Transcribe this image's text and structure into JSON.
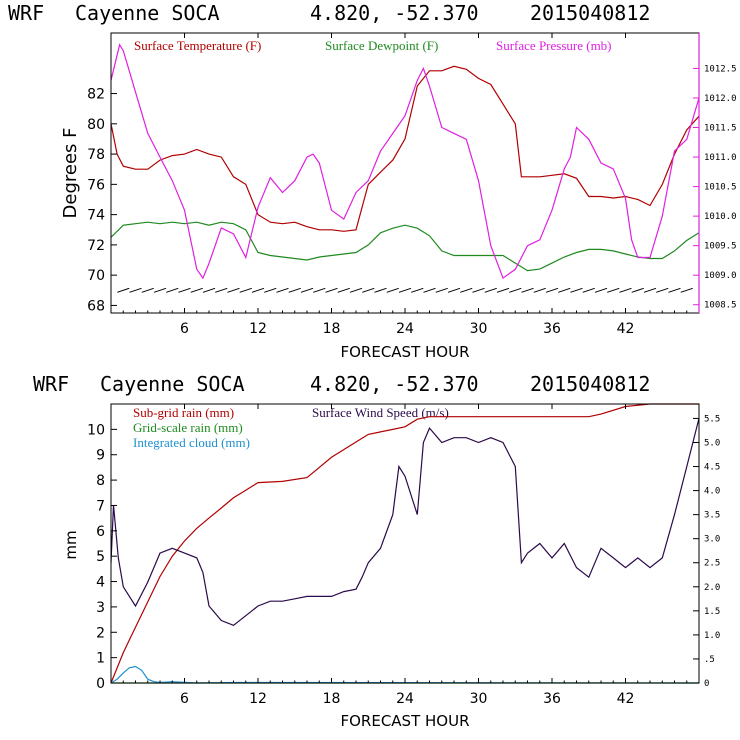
{
  "chart_data": [
    {
      "type": "line",
      "header": {
        "model": "WRF",
        "station": "Cayenne SOCA",
        "coords": "4.820, -52.370",
        "init": "2015040812"
      },
      "legend": [
        {
          "label": "Surface Temperature (F)",
          "color": "#b00000"
        },
        {
          "label": "Surface Dewpoint (F)",
          "color": "#1f8a1f"
        },
        {
          "label": "Surface Pressure (mb)",
          "color": "#e020e0"
        }
      ],
      "xlabel": "FORECAST HOUR",
      "ylabel": "Degrees F",
      "xlim": [
        0,
        48
      ],
      "ylim": [
        67.5,
        86
      ],
      "y2lim": [
        1008.36,
        1013.1
      ],
      "xticks": [
        "6",
        "12",
        "18",
        "24",
        "30",
        "36",
        "42"
      ],
      "yticks": [
        "68",
        "70",
        "72",
        "74",
        "76",
        "78",
        "80",
        "82"
      ],
      "y2ticks": [
        "1008.5",
        "1009.0",
        "1009.5",
        "1010.0",
        "1010.5",
        "1011.0",
        "1011.5",
        "1012.0",
        "1012.5"
      ],
      "barb_baseline": 69,
      "series": [
        {
          "name": "Surface Temperature (F)",
          "color": "#b00000",
          "axis": "left",
          "x": [
            0,
            0.5,
            1,
            2,
            3,
            4,
            5,
            6,
            7,
            8,
            9,
            10,
            11,
            12,
            13,
            14,
            15,
            16,
            17,
            18,
            19,
            20,
            20.5,
            21,
            22,
            23,
            24,
            25,
            26,
            27,
            28,
            29,
            30,
            31,
            32,
            33,
            33.5,
            34,
            35,
            36,
            37,
            38,
            39,
            40,
            41,
            42,
            43,
            44,
            45,
            46,
            47,
            48
          ],
          "values": [
            80.0,
            78.0,
            77.2,
            77.0,
            77.0,
            77.6,
            77.9,
            78.0,
            78.3,
            78.0,
            77.8,
            76.5,
            76.0,
            74.0,
            73.5,
            73.4,
            73.5,
            73.2,
            73.0,
            73.0,
            72.9,
            73.0,
            74.5,
            76.0,
            76.8,
            77.6,
            79.0,
            82.5,
            83.5,
            83.5,
            83.8,
            83.6,
            83.0,
            82.6,
            81.3,
            80.0,
            76.5,
            76.5,
            76.5,
            76.6,
            76.7,
            76.4,
            75.2,
            75.2,
            75.1,
            75.2,
            75.0,
            74.6,
            76.0,
            78.0,
            79.6,
            80.5
          ]
        },
        {
          "name": "Surface Dewpoint (F)",
          "color": "#1f8a1f",
          "axis": "left",
          "x": [
            0,
            1,
            2,
            3,
            4,
            5,
            6,
            7,
            8,
            9,
            10,
            11,
            12,
            13,
            14,
            15,
            16,
            17,
            18,
            19,
            20,
            21,
            22,
            23,
            24,
            25,
            26,
            27,
            28,
            29,
            30,
            31,
            32,
            33,
            34,
            35,
            36,
            37,
            38,
            39,
            40,
            41,
            42,
            43,
            44,
            45,
            46,
            47,
            48
          ],
          "values": [
            72.5,
            73.3,
            73.4,
            73.5,
            73.4,
            73.5,
            73.4,
            73.5,
            73.3,
            73.5,
            73.4,
            73.0,
            71.5,
            71.3,
            71.2,
            71.1,
            71.0,
            71.2,
            71.3,
            71.4,
            71.5,
            72.0,
            72.8,
            73.1,
            73.3,
            73.1,
            72.6,
            71.6,
            71.3,
            71.3,
            71.3,
            71.3,
            71.3,
            70.8,
            70.3,
            70.4,
            70.8,
            71.2,
            71.5,
            71.7,
            71.7,
            71.6,
            71.4,
            71.2,
            71.1,
            71.1,
            71.6,
            72.3,
            72.8
          ]
        },
        {
          "name": "Surface Pressure (mb)",
          "color": "#e020e0",
          "axis": "right",
          "x": [
            0,
            0.7,
            1,
            2,
            3,
            4,
            5,
            6,
            7,
            7.5,
            8,
            9,
            10,
            11,
            12,
            13,
            14,
            15,
            16,
            16.5,
            17,
            18,
            19,
            20,
            21,
            22,
            23,
            24,
            25,
            25.5,
            26,
            27,
            28,
            29,
            30,
            31,
            32,
            33,
            34,
            35,
            36,
            37,
            37.5,
            38,
            39,
            40,
            41,
            42,
            42.5,
            43,
            44,
            45,
            46,
            47,
            48
          ],
          "values": [
            1012.3,
            1012.9,
            1012.8,
            1012.1,
            1011.4,
            1011.0,
            1010.6,
            1010.1,
            1009.1,
            1008.95,
            1009.2,
            1009.8,
            1009.7,
            1009.3,
            1010.15,
            1010.65,
            1010.4,
            1010.6,
            1011.0,
            1011.05,
            1010.9,
            1010.1,
            1009.95,
            1010.4,
            1010.6,
            1011.1,
            1011.4,
            1011.7,
            1012.3,
            1012.5,
            1012.2,
            1011.5,
            1011.4,
            1011.3,
            1010.6,
            1009.5,
            1008.95,
            1009.1,
            1009.5,
            1009.6,
            1010.1,
            1010.8,
            1011.0,
            1011.5,
            1011.3,
            1010.9,
            1010.8,
            1010.3,
            1009.6,
            1009.3,
            1009.3,
            1010.0,
            1011.1,
            1011.3,
            1012.0
          ]
        }
      ]
    },
    {
      "type": "line",
      "header": {
        "model": "WRF",
        "station": "Cayenne SOCA",
        "coords": "4.820, -52.370",
        "init": "2015040812"
      },
      "legend": [
        {
          "label": "Sub-grid rain (mm)",
          "color": "#b00000"
        },
        {
          "label": "Surface Wind Speed (m/s)",
          "color": "#2a0a4a"
        },
        {
          "label": "Grid-scale rain (mm)",
          "color": "#1f8a1f"
        },
        {
          "label": "Integrated cloud (mm)",
          "color": "#1e90d0"
        }
      ],
      "xlabel": "FORECAST HOUR",
      "ylabel": "mm",
      "xlim": [
        0,
        48
      ],
      "ylim": [
        0,
        11
      ],
      "y2lim": [
        0,
        5.8
      ],
      "xticks": [
        "6",
        "12",
        "18",
        "24",
        "30",
        "36",
        "42"
      ],
      "yticks": [
        "0",
        "1",
        "2",
        "3",
        "4",
        "5",
        "6",
        "7",
        "8",
        "9",
        "10"
      ],
      "y2ticks": [
        "0",
        ".5",
        "1.0",
        "1.5",
        "2.0",
        "2.5",
        "3.0",
        "3.5",
        "4.0",
        "4.5",
        "5.0",
        "5.5"
      ],
      "series": [
        {
          "name": "Sub-grid rain (mm)",
          "color": "#b00000",
          "axis": "left",
          "x": [
            0,
            1,
            2,
            3,
            4,
            5,
            6,
            7,
            8,
            9,
            10,
            11,
            12,
            14,
            16,
            17,
            18,
            20,
            21,
            22,
            23,
            24,
            25,
            26,
            28,
            30,
            32,
            34,
            36,
            38,
            39,
            40,
            42,
            44,
            46,
            48
          ],
          "values": [
            0.0,
            1.2,
            2.2,
            3.2,
            4.2,
            5.0,
            5.6,
            6.1,
            6.5,
            6.9,
            7.3,
            7.6,
            7.9,
            7.95,
            8.1,
            8.5,
            8.9,
            9.5,
            9.8,
            9.9,
            10.0,
            10.1,
            10.4,
            10.5,
            10.5,
            10.5,
            10.5,
            10.5,
            10.5,
            10.5,
            10.5,
            10.6,
            10.9,
            11.0,
            11.0,
            11.0
          ]
        },
        {
          "name": "Surface Wind Speed (m/s)",
          "color": "#2a0a4a",
          "axis": "right",
          "x": [
            0,
            0.2,
            0.6,
            1,
            1.5,
            2,
            3,
            4,
            5,
            6,
            7,
            7.5,
            8,
            9,
            10,
            11,
            12,
            13,
            14,
            15,
            16,
            17,
            18,
            19,
            20,
            20.5,
            21,
            22,
            23,
            23.5,
            24,
            25,
            25.5,
            26,
            27,
            28,
            29,
            30,
            31,
            32,
            33,
            33.5,
            34,
            35,
            36,
            37,
            38,
            39,
            40,
            41,
            42,
            43,
            44,
            45,
            46,
            47,
            48
          ],
          "values": [
            2.5,
            3.7,
            2.6,
            2.0,
            1.8,
            1.6,
            2.1,
            2.7,
            2.8,
            2.7,
            2.6,
            2.3,
            1.6,
            1.3,
            1.2,
            1.4,
            1.6,
            1.7,
            1.7,
            1.75,
            1.8,
            1.8,
            1.8,
            1.9,
            1.95,
            2.2,
            2.5,
            2.8,
            3.5,
            4.5,
            4.3,
            3.5,
            5.0,
            5.3,
            5.0,
            5.1,
            5.1,
            5.0,
            5.1,
            5.0,
            4.5,
            2.5,
            2.7,
            2.9,
            2.6,
            2.9,
            2.4,
            2.2,
            2.8,
            2.6,
            2.4,
            2.6,
            2.4,
            2.6,
            3.5,
            4.5,
            5.5
          ]
        },
        {
          "name": "Grid-scale rain (mm)",
          "color": "#1f8a1f",
          "axis": "left",
          "x": [
            0,
            48
          ],
          "values": [
            0,
            0
          ]
        },
        {
          "name": "Integrated cloud (mm)",
          "color": "#1e90d0",
          "axis": "left",
          "x": [
            0,
            0.5,
            1,
            1.5,
            2,
            2.5,
            3,
            3.5,
            4,
            5,
            7,
            10,
            48
          ],
          "values": [
            0.0,
            0.15,
            0.4,
            0.6,
            0.65,
            0.5,
            0.15,
            0.05,
            0.02,
            0.05,
            0.0,
            0.02,
            0.0
          ]
        }
      ]
    }
  ]
}
